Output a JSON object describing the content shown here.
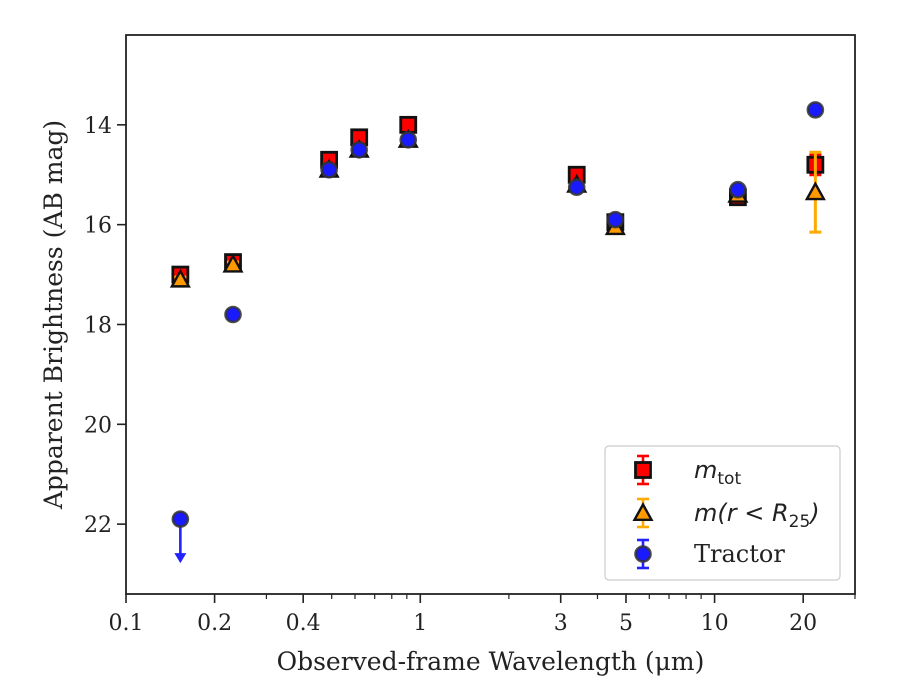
{
  "chart_data": {
    "type": "scatter",
    "xlabel": "Observed-frame Wavelength (μm)",
    "ylabel": "Apparent Brightness (AB mag)",
    "xscale": "log",
    "xlim": [
      0.1,
      30
    ],
    "ylim": [
      23.4,
      12.2
    ],
    "y_inverted": true,
    "grid": false,
    "legend_position": "lower-right",
    "x_ticks": [
      {
        "value": 0.1,
        "label": "0.1"
      },
      {
        "value": 0.2,
        "label": "0.2"
      },
      {
        "value": 0.4,
        "label": "0.4"
      },
      {
        "value": 1,
        "label": "1"
      },
      {
        "value": 3,
        "label": "3"
      },
      {
        "value": 5,
        "label": "5"
      },
      {
        "value": 10,
        "label": "10"
      },
      {
        "value": 20,
        "label": "20"
      }
    ],
    "y_ticks": [
      {
        "value": 14,
        "label": "14"
      },
      {
        "value": 16,
        "label": "16"
      },
      {
        "value": 18,
        "label": "18"
      },
      {
        "value": 20,
        "label": "20"
      },
      {
        "value": 22,
        "label": "22"
      }
    ],
    "series": [
      {
        "name": "m_tot",
        "marker": "square",
        "color": "#ff0000",
        "errcolor": "#ff0000",
        "points": [
          {
            "x": 0.153,
            "y": 17.0,
            "err": 0.08
          },
          {
            "x": 0.231,
            "y": 16.75,
            "err": 0.08
          },
          {
            "x": 0.49,
            "y": 14.7,
            "err": 0.05
          },
          {
            "x": 0.62,
            "y": 14.25,
            "err": 0.05
          },
          {
            "x": 0.91,
            "y": 14.0,
            "err": 0.05
          },
          {
            "x": 3.4,
            "y": 15.0,
            "err": 0.05
          },
          {
            "x": 4.6,
            "y": 15.95,
            "err": 0.05
          },
          {
            "x": 12.0,
            "y": 15.45,
            "err": 0.08
          },
          {
            "x": 22.0,
            "y": 14.8,
            "err": 0.2
          }
        ]
      },
      {
        "name": "m(r < R25)",
        "marker": "triangle",
        "color": "#ff9900",
        "errcolor": "#ffaa00",
        "points": [
          {
            "x": 0.153,
            "y": 17.1,
            "err": 0.05
          },
          {
            "x": 0.231,
            "y": 16.8,
            "err": 0.05
          },
          {
            "x": 0.49,
            "y": 14.9,
            "err": 0.05
          },
          {
            "x": 0.62,
            "y": 14.5,
            "err": 0.05
          },
          {
            "x": 0.91,
            "y": 14.3,
            "err": 0.05
          },
          {
            "x": 3.4,
            "y": 15.2,
            "err": 0.05
          },
          {
            "x": 4.6,
            "y": 16.05,
            "err": 0.05
          },
          {
            "x": 12.0,
            "y": 15.4,
            "err": 0.05
          },
          {
            "x": 22.0,
            "y": 15.35,
            "err": 0.8
          }
        ]
      },
      {
        "name": "Tractor",
        "marker": "circle",
        "color": "#1a1aff",
        "errcolor": "#2222ff",
        "points": [
          {
            "x": 0.153,
            "y": 21.9,
            "err": 0.0,
            "upper_limit": true
          },
          {
            "x": 0.231,
            "y": 17.8,
            "err": 0.08
          },
          {
            "x": 0.49,
            "y": 14.9,
            "err": 0.05
          },
          {
            "x": 0.62,
            "y": 14.5,
            "err": 0.05
          },
          {
            "x": 0.91,
            "y": 14.3,
            "err": 0.05
          },
          {
            "x": 3.4,
            "y": 15.25,
            "err": 0.05
          },
          {
            "x": 4.6,
            "y": 15.9,
            "err": 0.05
          },
          {
            "x": 12.0,
            "y": 15.3,
            "err": 0.05
          },
          {
            "x": 22.0,
            "y": 13.7,
            "err": 0.05
          }
        ]
      }
    ],
    "legend": {
      "entries": [
        {
          "series": "m_tot",
          "base": "m",
          "sub": "tot"
        },
        {
          "series": "m(r < R25)",
          "prefix": "m(r < R",
          "sub": "25",
          "suffix": ")"
        },
        {
          "series": "Tractor",
          "label": "Tractor"
        }
      ]
    }
  }
}
